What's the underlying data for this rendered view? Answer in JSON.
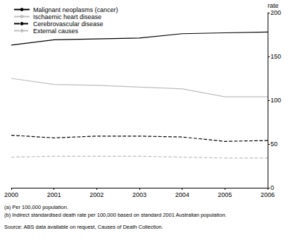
{
  "chart_data": {
    "type": "line",
    "y_label": "rate",
    "categories": [
      "2000",
      "2001",
      "2002",
      "2003",
      "2004",
      "2005",
      "2006"
    ],
    "series": [
      {
        "name": "Malignant neoplasms (cancer)",
        "color": "#000000",
        "line_style": "solid",
        "values": [
          163,
          169,
          170,
          171,
          176,
          177,
          178
        ]
      },
      {
        "name": "Ischaemic heart disease",
        "color": "#bdbdbd",
        "line_style": "solid",
        "values": [
          125,
          118,
          117,
          115,
          113,
          104,
          104
        ]
      },
      {
        "name": "Cerebrovascular disease",
        "color": "#000000",
        "line_style": "dashed",
        "values": [
          60,
          57,
          59,
          59,
          58,
          53,
          54
        ]
      },
      {
        "name": "External causes",
        "color": "#bdbdbd",
        "line_style": "dashed",
        "values": [
          35,
          36,
          36,
          36,
          35,
          34,
          34
        ]
      }
    ],
    "ylim": [
      0,
      200
    ],
    "yticks": [
      0,
      50,
      100,
      150,
      200
    ],
    "grid": false,
    "legend": "top-left",
    "annotations": [
      "(a) Per 100,000 population.",
      "(b) Indirect standardised death rate per 100,000 based on standard 2001 Australian population.",
      "Source: ABS data available on request, Causes of Death Collection."
    ]
  }
}
